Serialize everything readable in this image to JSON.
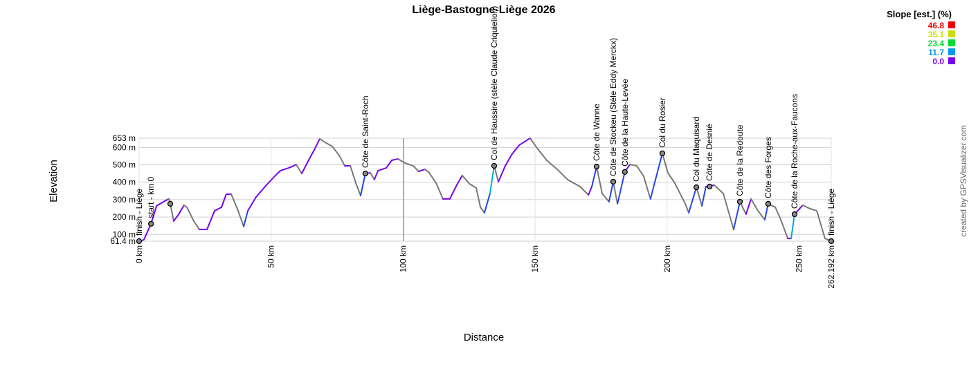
{
  "chart_data": {
    "type": "line",
    "title": "Liège-Bastogne-Liège 2026",
    "xlabel": "Distance",
    "ylabel": "Elevation",
    "credit": "created by GPSVisualizer.com",
    "xlim": [
      0,
      262.192
    ],
    "ylim": [
      61.4,
      653
    ],
    "x_ticks": [
      "0 km",
      "50 km",
      "100 km",
      "150 km",
      "200 km",
      "250 km",
      "262.192 km"
    ],
    "x_tick_values": [
      0,
      50,
      100,
      150,
      200,
      250,
      262.192
    ],
    "y_ticks": [
      "61.4 m",
      "100 m",
      "200 m",
      "300 m",
      "400 m",
      "500 m",
      "600 m",
      "653 m"
    ],
    "y_tick_values": [
      61.4,
      100,
      200,
      300,
      400,
      500,
      600,
      653
    ],
    "reference_line_km": 100.2,
    "legend": {
      "title": "Slope [est.] (%)",
      "placement": "top-right",
      "entries": [
        {
          "label": "46.8",
          "color": "#ee0000"
        },
        {
          "label": "35.1",
          "color": "#c8e000"
        },
        {
          "label": "23.4",
          "color": "#00dd33"
        },
        {
          "label": "11.7",
          "color": "#0099ee"
        },
        {
          "label": "0.0",
          "color": "#7700ee"
        }
      ]
    },
    "waypoints": [
      {
        "name": "finish - Liège",
        "km": 0,
        "elev": 61.4
      },
      {
        "name": "start - km 0",
        "km": 4.5,
        "elev": 161
      },
      {
        "name": "",
        "km": 11.8,
        "elev": 276
      },
      {
        "name": "Côte de Saint-Roch",
        "km": 85.7,
        "elev": 450
      },
      {
        "name": "Col de Haussire (stèle Claude Criquielion)",
        "km": 134.5,
        "elev": 494
      },
      {
        "name": "Côte de Wanne",
        "km": 173.3,
        "elev": 490
      },
      {
        "name": "Côte de Stockeu (Stèle Eddy Merckx)",
        "km": 179.6,
        "elev": 403
      },
      {
        "name": "Côte de la Haute-Levée",
        "km": 184,
        "elev": 459
      },
      {
        "name": "Col du Rosier",
        "km": 198.2,
        "elev": 566
      },
      {
        "name": "Col du Maquisard",
        "km": 211.1,
        "elev": 371
      },
      {
        "name": "Côte de Desnié",
        "km": 216.1,
        "elev": 375
      },
      {
        "name": "Côte de la Redoute",
        "km": 227.6,
        "elev": 288
      },
      {
        "name": "Côte des Forges",
        "km": 238.3,
        "elev": 276
      },
      {
        "name": "Côte de la Roche-aux-Faucons",
        "km": 248.3,
        "elev": 216
      },
      {
        "name": "finish - Liège",
        "km": 262.192,
        "elev": 61.4
      }
    ],
    "profile": [
      [
        0,
        61
      ],
      [
        1.8,
        69
      ],
      [
        4.5,
        161
      ],
      [
        6.6,
        264
      ],
      [
        10.2,
        296
      ],
      [
        11.3,
        304
      ],
      [
        11.8,
        276
      ],
      [
        13.1,
        177
      ],
      [
        15,
        216
      ],
      [
        17,
        268
      ],
      [
        18.1,
        256
      ],
      [
        20.7,
        177
      ],
      [
        22.8,
        129
      ],
      [
        25.7,
        129
      ],
      [
        28.6,
        236
      ],
      [
        31.2,
        256
      ],
      [
        33,
        331
      ],
      [
        34.9,
        331
      ],
      [
        37.5,
        236
      ],
      [
        39.6,
        145
      ],
      [
        41.2,
        236
      ],
      [
        44.3,
        315
      ],
      [
        48.2,
        383
      ],
      [
        51.4,
        435
      ],
      [
        53.5,
        466
      ],
      [
        57.4,
        486
      ],
      [
        59.5,
        502
      ],
      [
        61.6,
        450
      ],
      [
        64.2,
        526
      ],
      [
        66.6,
        593
      ],
      [
        68.4,
        649
      ],
      [
        70.5,
        629
      ],
      [
        73.2,
        605
      ],
      [
        75.8,
        554
      ],
      [
        77.9,
        494
      ],
      [
        80,
        494
      ],
      [
        82.1,
        395
      ],
      [
        83.9,
        323
      ],
      [
        85.7,
        450
      ],
      [
        87.6,
        454
      ],
      [
        89.1,
        415
      ],
      [
        90.5,
        466
      ],
      [
        93.6,
        482
      ],
      [
        95.7,
        526
      ],
      [
        98.1,
        534
      ],
      [
        100.2,
        514
      ],
      [
        103.8,
        494
      ],
      [
        105.9,
        462
      ],
      [
        108.3,
        474
      ],
      [
        109.9,
        454
      ],
      [
        112.5,
        395
      ],
      [
        115.1,
        304
      ],
      [
        117.7,
        304
      ],
      [
        120.3,
        383
      ],
      [
        122.4,
        439
      ],
      [
        125.1,
        391
      ],
      [
        127.7,
        367
      ],
      [
        129.3,
        256
      ],
      [
        130.8,
        224
      ],
      [
        132.9,
        335
      ],
      [
        134.5,
        494
      ],
      [
        136.1,
        403
      ],
      [
        138.7,
        494
      ],
      [
        141.3,
        562
      ],
      [
        144,
        613
      ],
      [
        148.1,
        653
      ],
      [
        150.5,
        601
      ],
      [
        154.4,
        526
      ],
      [
        158.4,
        474
      ],
      [
        162.3,
        415
      ],
      [
        167,
        375
      ],
      [
        170.2,
        327
      ],
      [
        171.5,
        375
      ],
      [
        173.3,
        490
      ],
      [
        175.4,
        335
      ],
      [
        178,
        288
      ],
      [
        179.6,
        403
      ],
      [
        181.2,
        276
      ],
      [
        184,
        459
      ],
      [
        185.9,
        502
      ],
      [
        188.5,
        494
      ],
      [
        191.1,
        435
      ],
      [
        193.7,
        304
      ],
      [
        198.2,
        566
      ],
      [
        200.3,
        454
      ],
      [
        202.9,
        395
      ],
      [
        206.9,
        276
      ],
      [
        208.2,
        224
      ],
      [
        211.1,
        371
      ],
      [
        213.2,
        264
      ],
      [
        214.7,
        375
      ],
      [
        217.9,
        383
      ],
      [
        221.3,
        335
      ],
      [
        225.2,
        129
      ],
      [
        227.6,
        288
      ],
      [
        229.9,
        216
      ],
      [
        231.8,
        304
      ],
      [
        234.4,
        236
      ],
      [
        237,
        184
      ],
      [
        238.3,
        276
      ],
      [
        241,
        256
      ],
      [
        243.1,
        184
      ],
      [
        245.7,
        77
      ],
      [
        247,
        77
      ],
      [
        248.3,
        216
      ],
      [
        251.4,
        268
      ],
      [
        254.1,
        248
      ],
      [
        256.7,
        236
      ],
      [
        259.8,
        77
      ],
      [
        262.192,
        61
      ]
    ]
  }
}
